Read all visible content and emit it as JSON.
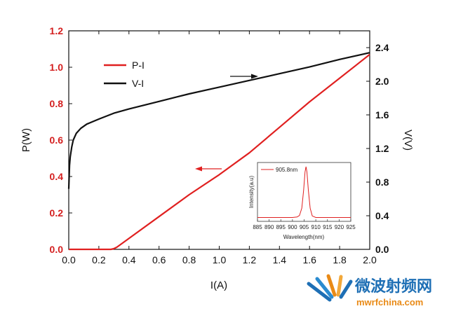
{
  "chart_data": {
    "type": "line",
    "xlabel": "I(A)",
    "ylabel": "P(W)",
    "y2label": "V(V)",
    "xlim": [
      0,
      2.0
    ],
    "ylim": [
      0,
      1.2
    ],
    "y2lim": [
      0,
      2.6
    ],
    "x_ticks": [
      "0.0",
      "0.2",
      "0.4",
      "0.6",
      "0.8",
      "1.0",
      "1.2",
      "1.4",
      "1.6",
      "1.8",
      "2.0"
    ],
    "y_ticks": [
      "0.0",
      "0.2",
      "0.4",
      "0.6",
      "0.8",
      "1.0",
      "1.2"
    ],
    "y2_ticks": [
      "0.0",
      "0.4",
      "0.8",
      "1.2",
      "1.6",
      "2.0",
      "2.4"
    ],
    "legend_position": "upper-left",
    "series": [
      {
        "name": "P-I",
        "axis": "left",
        "color": "#e02020",
        "x": [
          0.0,
          0.2,
          0.28,
          0.3,
          0.32,
          0.4,
          0.6,
          0.8,
          1.0,
          1.2,
          1.4,
          1.6,
          1.8,
          2.0
        ],
        "y": [
          0.0,
          0.0,
          0.0,
          0.004,
          0.012,
          0.06,
          0.18,
          0.3,
          0.41,
          0.53,
          0.67,
          0.81,
          0.94,
          1.07
        ]
      },
      {
        "name": "V-I",
        "axis": "right",
        "color": "#111111",
        "x": [
          0.0,
          0.005,
          0.01,
          0.02,
          0.03,
          0.05,
          0.08,
          0.12,
          0.2,
          0.3,
          0.4,
          0.6,
          0.8,
          1.0,
          1.2,
          1.4,
          1.6,
          1.8,
          2.0
        ],
        "y": [
          0.72,
          1.0,
          1.1,
          1.22,
          1.3,
          1.38,
          1.44,
          1.49,
          1.55,
          1.62,
          1.67,
          1.76,
          1.85,
          1.93,
          2.01,
          2.09,
          2.17,
          2.26,
          2.34
        ]
      }
    ],
    "inset": {
      "type": "line",
      "xlabel": "Wavelength(nm)",
      "ylabel": "Intensity(a.u)",
      "xlim": [
        885,
        925
      ],
      "x_ticks": [
        "885",
        "890",
        "895",
        "900",
        "905",
        "910",
        "915",
        "920",
        "925"
      ],
      "legend": "905.8nm",
      "color": "#e02020",
      "peak_nm": 905.8,
      "x": [
        885,
        900,
        902,
        903,
        904,
        904.8,
        905.4,
        905.8,
        906.2,
        906.8,
        907.6,
        908.5,
        910,
        925
      ],
      "y": [
        0.02,
        0.02,
        0.03,
        0.06,
        0.2,
        0.55,
        0.9,
        1.0,
        0.9,
        0.55,
        0.2,
        0.05,
        0.02,
        0.02
      ]
    }
  },
  "watermark": {
    "chinese": "微波射频网",
    "url": "mwrfchina.com"
  }
}
